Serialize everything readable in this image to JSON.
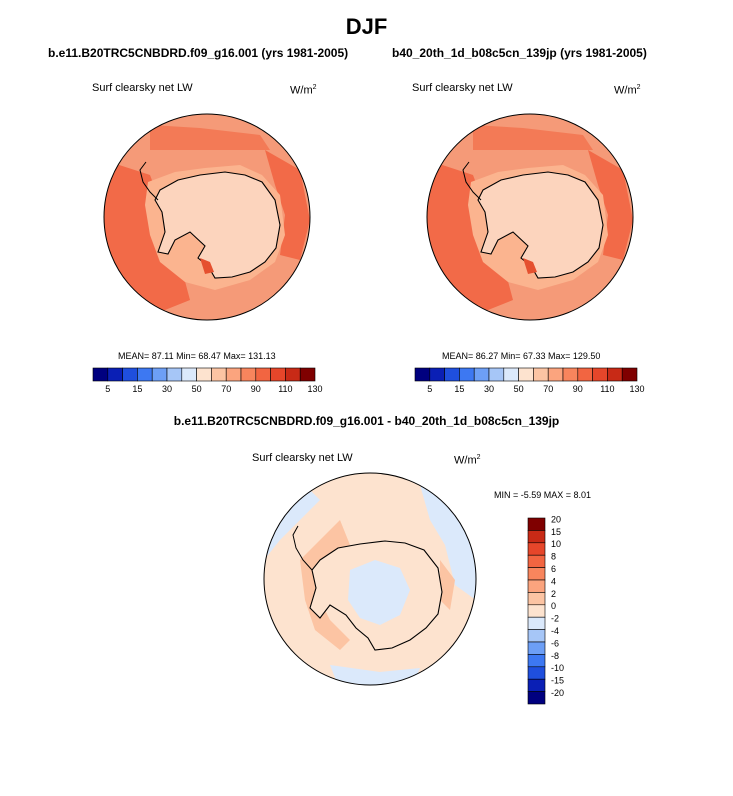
{
  "title": "DJF",
  "variable": "Surf clearsky net LW",
  "units_base": "W/m",
  "units_exp": "2",
  "panels": [
    {
      "case": "b.e11.B20TRC5CNBDRD.f09_g16.001 (yrs 1981-2005)",
      "stats_text": "MEAN=  87.11  Min=  68.47  Max= 131.13"
    },
    {
      "case": "b40_20th_1d_b08c5cn_139jp (yrs 1981-2005)",
      "stats_text": "MEAN=  86.27  Min=  67.33  Max= 129.50"
    }
  ],
  "difference": {
    "title": "b.e11.B20TRC5CNBDRD.f09_g16.001 - b40_20th_1d_b08c5cn_139jp",
    "stats_text": "MIN =  -5.59 MAX =   8.01"
  },
  "colors": {
    "main": [
      "#00007f",
      "#0a1fb5",
      "#1f4fde",
      "#3d78f2",
      "#6d9ff6",
      "#a6c6f7",
      "#dbe9fb",
      "#fde3cf",
      "#fcc4a3",
      "#fba47e",
      "#f8855d",
      "#f26541",
      "#e6462a",
      "#c82a16",
      "#7f0000"
    ],
    "diff": [
      "#00007f",
      "#0a1fb5",
      "#1f4fde",
      "#3d78f2",
      "#6d9ff6",
      "#a6c6f7",
      "#dbe9fb",
      "#fde3cf",
      "#fcc4a3",
      "#fba47e",
      "#f8855d",
      "#f26541",
      "#e6462a",
      "#c82a16",
      "#7f0000"
    ]
  },
  "chart_data": [
    {
      "type": "heatmap",
      "title": "Surf clearsky net LW",
      "case": "b.e11.B20TRC5CNBDRD.f09_g16.001 (yrs 1981-2005)",
      "units": "W/m2",
      "projection": "south polar stereographic",
      "colorbar_levels": [
        5,
        10,
        15,
        20,
        30,
        40,
        50,
        60,
        70,
        80,
        90,
        100,
        110,
        120,
        130
      ],
      "colorbar_labels": [
        "5",
        "15",
        "30",
        "50",
        "70",
        "90",
        "110",
        "130"
      ],
      "mean": 87.11,
      "min": 68.47,
      "max": 131.13
    },
    {
      "type": "heatmap",
      "title": "Surf clearsky net LW",
      "case": "b40_20th_1d_b08c5cn_139jp (yrs 1981-2005)",
      "units": "W/m2",
      "projection": "south polar stereographic",
      "colorbar_levels": [
        5,
        10,
        15,
        20,
        30,
        40,
        50,
        60,
        70,
        80,
        90,
        100,
        110,
        120,
        130
      ],
      "colorbar_labels": [
        "5",
        "15",
        "30",
        "50",
        "70",
        "90",
        "110",
        "130"
      ],
      "mean": 86.27,
      "min": 67.33,
      "max": 129.5
    },
    {
      "type": "heatmap",
      "title": "Surf clearsky net LW",
      "case": "b.e11.B20TRC5CNBDRD.f09_g16.001 - b40_20th_1d_b08c5cn_139jp",
      "units": "W/m2",
      "projection": "south polar stereographic",
      "colorbar_levels": [
        20,
        15,
        10,
        8,
        6,
        4,
        2,
        0,
        -2,
        -4,
        -6,
        -8,
        -10,
        -15,
        -20
      ],
      "colorbar_labels": [
        "20",
        "15",
        "10",
        "8",
        "6",
        "4",
        "2",
        "0",
        "-2",
        "-4",
        "-6",
        "-8",
        "-10",
        "-15",
        "-20"
      ],
      "min": -5.59,
      "max": 8.01
    }
  ]
}
